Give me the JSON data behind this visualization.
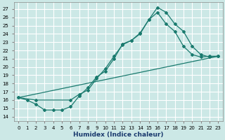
{
  "xlabel": "Humidex (Indice chaleur)",
  "bg_color": "#cce8e6",
  "grid_color": "#ffffff",
  "line_color": "#1a7a6e",
  "xlim": [
    -0.5,
    23.5
  ],
  "ylim": [
    13.5,
    27.8
  ],
  "xticks": [
    0,
    1,
    2,
    3,
    4,
    5,
    6,
    7,
    8,
    9,
    10,
    11,
    12,
    13,
    14,
    15,
    16,
    17,
    18,
    19,
    20,
    21,
    22,
    23
  ],
  "yticks": [
    14,
    15,
    16,
    17,
    18,
    19,
    20,
    21,
    22,
    23,
    24,
    25,
    26,
    27
  ],
  "curve1_x": [
    0,
    1,
    2,
    3,
    4,
    5,
    6,
    7,
    8,
    9,
    10,
    11,
    12,
    13,
    14,
    15,
    16,
    17,
    18,
    19,
    20,
    21,
    22,
    23
  ],
  "curve1_y": [
    16.3,
    16.0,
    15.5,
    14.8,
    14.8,
    14.8,
    15.2,
    16.5,
    17.5,
    18.8,
    19.5,
    21.0,
    22.8,
    23.2,
    24.1,
    25.7,
    27.2,
    26.6,
    25.2,
    24.3,
    22.5,
    21.5,
    21.2,
    21.3
  ],
  "curve2_x": [
    0,
    2,
    6,
    7,
    8,
    9,
    10,
    11,
    12,
    13,
    14,
    15,
    16,
    17,
    18,
    19,
    20,
    21,
    22,
    23
  ],
  "curve2_y": [
    16.3,
    16.0,
    16.0,
    16.7,
    17.2,
    18.6,
    19.8,
    21.3,
    22.7,
    23.2,
    24.0,
    25.7,
    26.6,
    25.2,
    24.3,
    22.5,
    21.5,
    21.2,
    21.3,
    21.3
  ],
  "curve3_x": [
    0,
    23
  ],
  "curve3_y": [
    16.3,
    21.3
  ]
}
